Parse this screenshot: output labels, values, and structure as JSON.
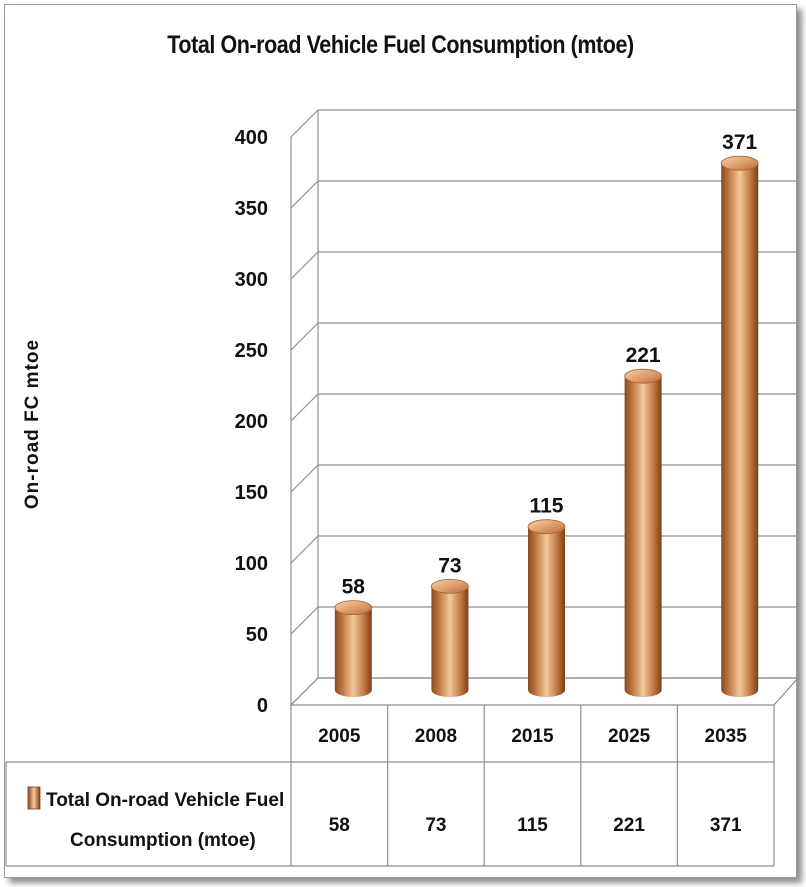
{
  "chart_data": {
    "type": "bar",
    "title": "Total On-road Vehicle Fuel Consumption (mtoe)",
    "ylabel": "On-road FC mtoe",
    "xlabel": "",
    "categories": [
      "2005",
      "2008",
      "2015",
      "2025",
      "2035"
    ],
    "series": [
      {
        "name": "Total On-road Vehicle Fuel Consumption (mtoe)",
        "values": [
          58,
          73,
          115,
          221,
          371
        ],
        "color": "#c9804a"
      }
    ],
    "ylim": [
      0,
      400
    ],
    "yticks": [
      "0",
      "50",
      "100",
      "150",
      "200",
      "250",
      "300",
      "350",
      "400"
    ],
    "data_labels": [
      "58",
      "73",
      "115",
      "221",
      "371"
    ],
    "grid": true,
    "legend": "data-table",
    "legend_lines": [
      "Total On-road Vehicle Fuel",
      "Consumption (mtoe)"
    ],
    "bar_shape": "3d-cylinder"
  }
}
